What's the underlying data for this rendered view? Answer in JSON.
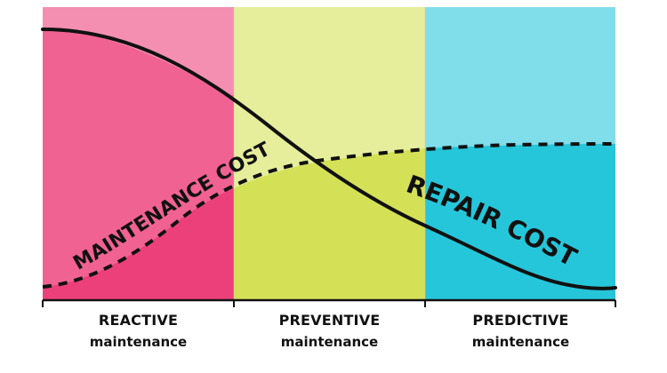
{
  "zones": [
    {
      "label": "REACTIVE",
      "sublabel": "maintenance",
      "color_top": "#f48fb1",
      "color_bottom": "#ec407a",
      "color_mid": "#f06292"
    },
    {
      "label": "PREVENTIVE",
      "sublabel": "maintenance",
      "color_top": "#e6ee9c",
      "color_bottom": "#d4e157",
      "color_mid": "#dce775"
    },
    {
      "label": "PREDICTIVE",
      "sublabel": "maintenance",
      "color_top": "#80deea",
      "color_bottom": "#26c6da",
      "color_mid": "#4dd0e1"
    }
  ],
  "curves": {
    "maintenance_cost": {
      "label": "MAINTENANCE COST",
      "style": "dashed"
    },
    "repair_cost": {
      "label": "REPAIR COST",
      "style": "solid"
    }
  },
  "colors": {
    "line": "#111111",
    "axis": "#111111"
  }
}
